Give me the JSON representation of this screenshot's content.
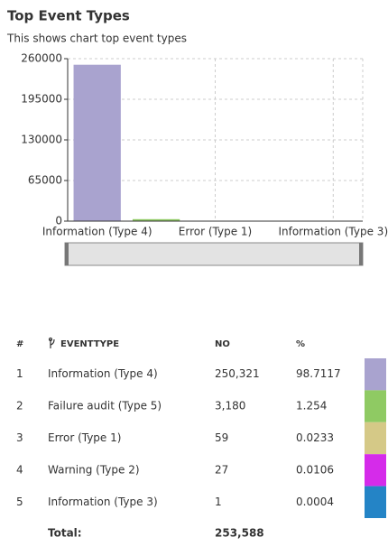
{
  "header": {
    "title": "Top Event Types",
    "subtitle": "This shows chart top event types"
  },
  "chart_data": {
    "type": "bar",
    "categories": [
      "Information (Type 4)",
      null,
      "Error (Type 1)",
      null,
      "Information (Type 3)"
    ],
    "values": [
      250321,
      3180,
      59,
      27,
      1
    ],
    "colors": [
      "#a9a3cf",
      "#8fca63",
      "#d5c987",
      "#d52bea",
      "#2484c6"
    ],
    "ylim": [
      0,
      260000
    ],
    "yticks": [
      0,
      65000,
      130000,
      195000,
      260000
    ],
    "grid": true
  },
  "table": {
    "columns": [
      "#",
      "EVENTTYPE",
      "NO",
      "%"
    ],
    "rows": [
      [
        "1",
        "Information (Type 4)",
        "250,321",
        "98.7117"
      ],
      [
        "2",
        "Failure audit (Type 5)",
        "3,180",
        "1.254"
      ],
      [
        "3",
        "Error (Type 1)",
        "59",
        "0.0233"
      ],
      [
        "4",
        "Warning (Type 2)",
        "27",
        "0.0106"
      ],
      [
        "5",
        "Information (Type 3)",
        "1",
        "0.0004"
      ]
    ],
    "colors": [
      "#a9a3cf",
      "#8fca63",
      "#d5c987",
      "#d52bea",
      "#2484c6"
    ],
    "total": [
      "Total:",
      "253,588"
    ]
  }
}
